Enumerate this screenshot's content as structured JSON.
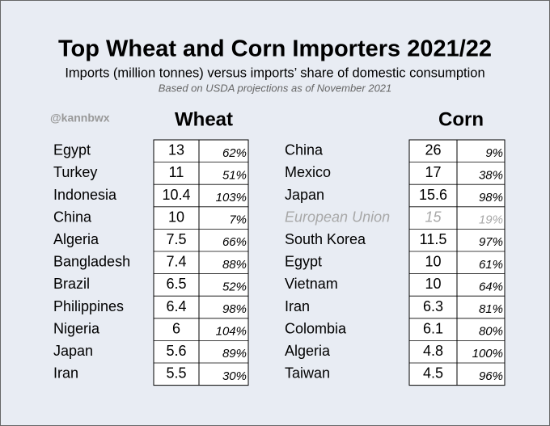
{
  "header": {
    "title": "Top Wheat and Corn Importers 2021/22",
    "subtitle": "Imports (million tonnes) versus imports’ share of domestic consumption",
    "note": "Based on USDA projections as of November 2021",
    "credit": "@kannbwx"
  },
  "wheat": {
    "heading": "Wheat",
    "muted_rows": [],
    "rows": [
      [
        "Egypt",
        "13",
        "62%"
      ],
      [
        "Turkey",
        "11",
        "51%"
      ],
      [
        "Indonesia",
        "10.4",
        "103%"
      ],
      [
        "China",
        "10",
        "7%"
      ],
      [
        "Algeria",
        "7.5",
        "66%"
      ],
      [
        "Bangladesh",
        "7.4",
        "88%"
      ],
      [
        "Brazil",
        "6.5",
        "52%"
      ],
      [
        "Philippines",
        "6.4",
        "98%"
      ],
      [
        "Nigeria",
        "6",
        "104%"
      ],
      [
        "Japan",
        "5.6",
        "89%"
      ],
      [
        "Iran",
        "5.5",
        "30%"
      ]
    ]
  },
  "corn": {
    "heading": "Corn",
    "muted_rows": [
      3
    ],
    "rows": [
      [
        "China",
        "26",
        "9%"
      ],
      [
        "Mexico",
        "17",
        "38%"
      ],
      [
        "Japan",
        "15.6",
        "98%"
      ],
      [
        "European Union",
        "15",
        "19%"
      ],
      [
        "South Korea",
        "11.5",
        "97%"
      ],
      [
        "Egypt",
        "10",
        "61%"
      ],
      [
        "Vietnam",
        "10",
        "64%"
      ],
      [
        "Iran",
        "6.3",
        "81%"
      ],
      [
        "Colombia",
        "6.1",
        "80%"
      ],
      [
        "Algeria",
        "4.8",
        "100%"
      ],
      [
        "Taiwan",
        "4.5",
        "96%"
      ]
    ]
  }
}
